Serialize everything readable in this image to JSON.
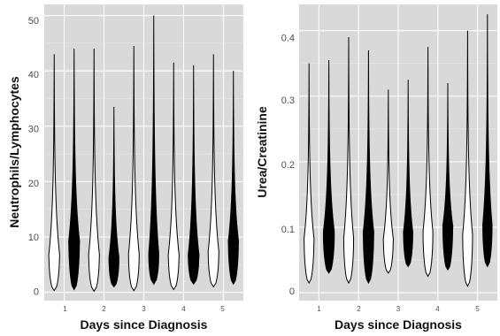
{
  "colors": {
    "panel_bg": "#d9d9d9",
    "grid_major": "#ffffff",
    "grid_minor": "#e9e9e9",
    "group_a_fill": "#ffffff",
    "group_b_fill": "#000000",
    "outline": "#000000"
  },
  "chart_data": [
    {
      "type": "violin",
      "xlabel": "Days since Diagnosis",
      "ylabel": "Neutrophils/Lymphocytes",
      "categories": [
        "1",
        "2",
        "3",
        "4",
        "5"
      ],
      "ylim": [
        -1.5,
        52
      ],
      "yticks": [
        0,
        10,
        20,
        30,
        40,
        50
      ],
      "grid": true,
      "series": [
        {
          "fill": "#ffffff",
          "violins": [
            {
              "min": 0.3,
              "max": 43.0,
              "mode": 6.5,
              "width": 0.85
            },
            {
              "min": 0.2,
              "max": 44.0,
              "mode": 6.5,
              "width": 0.85
            },
            {
              "min": 0.3,
              "max": 44.5,
              "mode": 6.5,
              "width": 0.85
            },
            {
              "min": 0.5,
              "max": 41.5,
              "mode": 6.5,
              "width": 0.85
            },
            {
              "min": 1.0,
              "max": 43.0,
              "mode": 7.0,
              "width": 0.85
            }
          ]
        },
        {
          "fill": "#000000",
          "violins": [
            {
              "min": 0.5,
              "max": 44.0,
              "mode": 9.0,
              "width": 0.85
            },
            {
              "min": 1.0,
              "max": 33.5,
              "mode": 6.0,
              "width": 0.8
            },
            {
              "min": 1.5,
              "max": 50.0,
              "mode": 6.5,
              "width": 0.8
            },
            {
              "min": 1.5,
              "max": 41.0,
              "mode": 6.5,
              "width": 0.85
            },
            {
              "min": 1.5,
              "max": 40.0,
              "mode": 9.0,
              "width": 0.8
            }
          ]
        }
      ]
    },
    {
      "type": "violin",
      "xlabel": "Days since Diagnosis",
      "ylabel": "Urea/Creatinine",
      "categories": [
        "1",
        "2",
        "3",
        "4",
        "5"
      ],
      "ylim": [
        -0.012,
        0.44
      ],
      "yticks": [
        0.0,
        0.1,
        0.2,
        0.3,
        0.4
      ],
      "grid": true,
      "series": [
        {
          "fill": "#ffffff",
          "violins": [
            {
              "min": 0.015,
              "max": 0.35,
              "mode": 0.08,
              "width": 0.85
            },
            {
              "min": 0.015,
              "max": 0.39,
              "mode": 0.08,
              "width": 0.85
            },
            {
              "min": 0.03,
              "max": 0.31,
              "mode": 0.08,
              "width": 0.85
            },
            {
              "min": 0.025,
              "max": 0.375,
              "mode": 0.09,
              "width": 0.85
            },
            {
              "min": 0.01,
              "max": 0.4,
              "mode": 0.085,
              "width": 0.85
            }
          ]
        },
        {
          "fill": "#000000",
          "violins": [
            {
              "min": 0.03,
              "max": 0.355,
              "mode": 0.09,
              "width": 0.95
            },
            {
              "min": 0.015,
              "max": 0.37,
              "mode": 0.09,
              "width": 0.9
            },
            {
              "min": 0.04,
              "max": 0.325,
              "mode": 0.09,
              "width": 0.8
            },
            {
              "min": 0.035,
              "max": 0.32,
              "mode": 0.1,
              "width": 0.85
            },
            {
              "min": 0.04,
              "max": 0.425,
              "mode": 0.1,
              "width": 0.8
            }
          ]
        }
      ]
    }
  ]
}
